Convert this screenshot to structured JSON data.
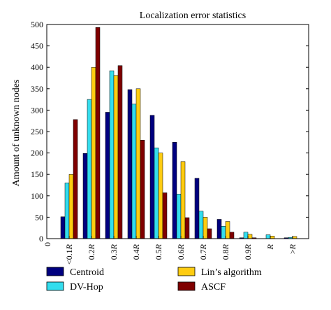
{
  "chart_data": {
    "type": "bar",
    "title": "Localization error statistics",
    "ylabel": "Amount of unknown nodes",
    "xlabel": "",
    "ylim": [
      0,
      500
    ],
    "yticks": [
      0,
      50,
      100,
      150,
      200,
      250,
      300,
      350,
      400,
      450,
      500
    ],
    "categories": [
      "<0.1R",
      "0.2R",
      "0.3R",
      "0.4R",
      "0.5R",
      "0.6R",
      "0.7R",
      "0.8R",
      "0.9R",
      "R",
      ">R"
    ],
    "x_origin_label": "0",
    "series": [
      {
        "name": "Centroid",
        "color": "#00007f",
        "values": [
          51,
          199,
          295,
          348,
          288,
          225,
          141,
          45,
          2,
          0,
          2
        ]
      },
      {
        "name": "DV-Hop",
        "color": "#33ddee",
        "values": [
          130,
          325,
          392,
          314,
          212,
          104,
          64,
          29,
          15,
          9,
          3
        ]
      },
      {
        "name": "Lin's algorithm",
        "color": "#ffcc11",
        "values": [
          150,
          400,
          381,
          350,
          200,
          180,
          50,
          40,
          10,
          6,
          5
        ]
      },
      {
        "name": "ASCF",
        "color": "#7f0000",
        "values": [
          278,
          493,
          404,
          230,
          107,
          49,
          23,
          15,
          2,
          0,
          0
        ]
      }
    ],
    "legend": {
      "placement": "bottom",
      "entries": [
        "Centroid",
        "Lin’s algorithm",
        "DV-Hop",
        "ASCF"
      ]
    },
    "grid": false
  }
}
